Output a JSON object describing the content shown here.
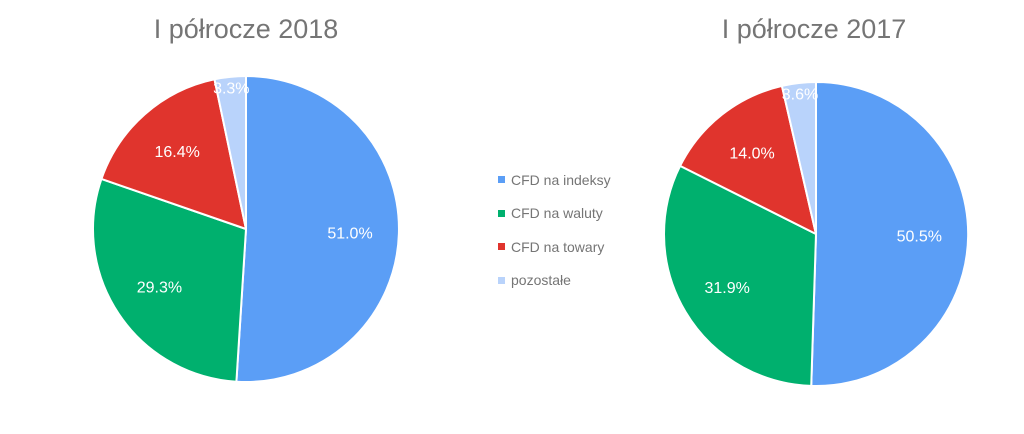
{
  "chart_data": [
    {
      "type": "pie",
      "title": "I półrocze 2018",
      "slices": [
        {
          "label": "CFD na indeksy",
          "value": 51.0,
          "text": "51.0%",
          "color": "#5b9ef6"
        },
        {
          "label": "CFD na waluty",
          "value": 29.3,
          "text": "29.3%",
          "color": "#00b06e"
        },
        {
          "label": "CFD na towary",
          "value": 16.4,
          "text": "16.4%",
          "color": "#e0342d"
        },
        {
          "label": "pozostałe",
          "value": 3.3,
          "text": "3.3%",
          "color": "#b9d3fb"
        }
      ]
    },
    {
      "type": "pie",
      "title": "I półrocze 2017",
      "slices": [
        {
          "label": "CFD na indeksy",
          "value": 50.5,
          "text": "50.5%",
          "color": "#5b9ef6"
        },
        {
          "label": "CFD na waluty",
          "value": 31.9,
          "text": "31.9%",
          "color": "#00b06e"
        },
        {
          "label": "CFD na towary",
          "value": 14.0,
          "text": "14.0%",
          "color": "#e0342d"
        },
        {
          "label": "pozostałe",
          "value": 3.6,
          "text": "3.6%",
          "color": "#b9d3fb"
        }
      ]
    }
  ],
  "legend": {
    "position": "center",
    "items": [
      {
        "label": "CFD na indeksy",
        "color": "#5b9ef6"
      },
      {
        "label": "CFD na waluty",
        "color": "#00b06e"
      },
      {
        "label": "CFD na towary",
        "color": "#e0342d"
      },
      {
        "label": "pozostałe",
        "color": "#b9d3fb"
      }
    ]
  }
}
